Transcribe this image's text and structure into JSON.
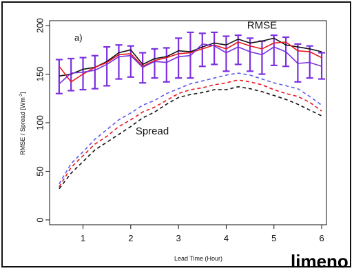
{
  "cropped_text": "limeno",
  "chart_data": {
    "type": "line",
    "panel_label": "a)",
    "xlabel": "Lead Time (Hour)",
    "ylabel_main": "RMSE / Spread [Wm",
    "ylabel_sup": "-2",
    "ylabel_end": "]",
    "xlim": [
      0.3,
      6.1
    ],
    "ylim": [
      -5,
      205
    ],
    "xticks": [
      1,
      2,
      3,
      4,
      5,
      6
    ],
    "yticks": [
      0,
      50,
      100,
      150,
      200
    ],
    "annotations": [
      {
        "text": "RMSE",
        "x": 4.75,
        "y": 197
      },
      {
        "text": "Spread",
        "x": 2.45,
        "y": 88
      }
    ],
    "x": [
      0.5,
      0.75,
      1.0,
      1.25,
      1.5,
      1.75,
      2.0,
      2.25,
      2.5,
      2.75,
      3.0,
      3.25,
      3.5,
      3.75,
      4.0,
      4.25,
      4.5,
      4.75,
      5.0,
      5.25,
      5.5,
      5.75,
      6.0
    ],
    "series": [
      {
        "role": "rmse",
        "color": "#111111",
        "dashed": false,
        "values": [
          148,
          150,
          155,
          157,
          163,
          172,
          175,
          160,
          166,
          168,
          174,
          173,
          178,
          182,
          180,
          186,
          182,
          184,
          187,
          180,
          178,
          176,
          173
        ]
      },
      {
        "role": "rmse",
        "color": "#e8141b",
        "dashed": false,
        "values": [
          158,
          142,
          150,
          157,
          162,
          170,
          171,
          158,
          164,
          167,
          171,
          172,
          176,
          180,
          176,
          183,
          179,
          176,
          182,
          183,
          174,
          173,
          167
        ]
      },
      {
        "role": "rmse",
        "color": "#7b2fe0",
        "dashed": false,
        "values": [
          140,
          151,
          152,
          154,
          160,
          168,
          169,
          157,
          163,
          162,
          168,
          169,
          181,
          179,
          172,
          178,
          173,
          170,
          178,
          173,
          161,
          162,
          158
        ]
      },
      {
        "role": "spread",
        "color": "#5a5af0",
        "dashed": true,
        "values": [
          37,
          58,
          70,
          83,
          93,
          103,
          110,
          118,
          123,
          130,
          135,
          140,
          143,
          146,
          149,
          151,
          149,
          145,
          141,
          138,
          135,
          127,
          118
        ]
      },
      {
        "role": "spread",
        "color": "#e8141b",
        "dashed": true,
        "values": [
          34,
          54,
          66,
          78,
          86,
          96,
          103,
          111,
          116,
          123,
          130,
          134,
          136,
          139,
          141,
          144,
          142,
          139,
          134,
          130,
          127,
          121,
          112
        ]
      },
      {
        "role": "spread",
        "color": "#111111",
        "dashed": true,
        "values": [
          32,
          48,
          60,
          72,
          80,
          88,
          96,
          105,
          111,
          119,
          126,
          129,
          131,
          134,
          134,
          137,
          135,
          132,
          128,
          124,
          119,
          113,
          107
        ]
      }
    ],
    "error_bars": {
      "color": "#7b2fe0",
      "x": [
        0.5,
        0.75,
        1.0,
        1.25,
        1.5,
        1.75,
        2.0,
        2.25,
        2.5,
        2.75,
        3.0,
        3.25,
        3.5,
        3.75,
        4.0,
        4.25,
        4.5,
        4.75,
        5.0,
        5.25,
        5.5,
        5.75,
        6.0
      ],
      "center": [
        140,
        151,
        152,
        154,
        160,
        168,
        169,
        157,
        163,
        162,
        168,
        169,
        181,
        179,
        172,
        178,
        173,
        170,
        178,
        173,
        161,
        162,
        158
      ],
      "low": [
        130,
        133,
        134,
        135,
        138,
        145,
        147,
        141,
        146,
        142,
        146,
        146,
        158,
        160,
        153,
        160,
        153,
        150,
        159,
        158,
        142,
        146,
        145
      ],
      "high": [
        165,
        166,
        167,
        169,
        178,
        180,
        179,
        172,
        176,
        177,
        187,
        193,
        192,
        193,
        189,
        190,
        187,
        184,
        190,
        188,
        181,
        179,
        172
      ]
    }
  }
}
